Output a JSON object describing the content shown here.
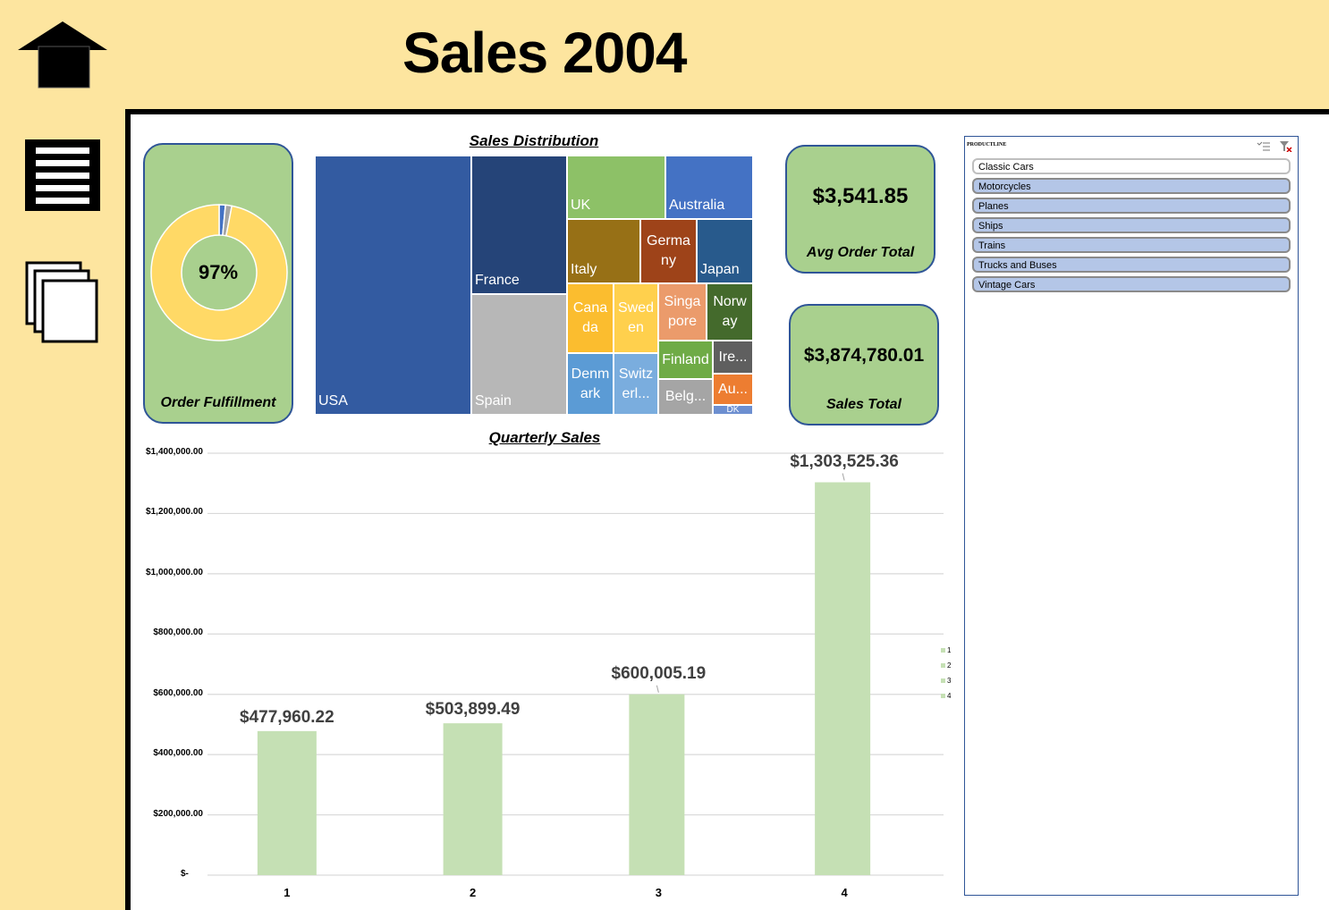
{
  "page": {
    "title": "Sales 2004"
  },
  "nav": {
    "home_icon": "home-arrow-icon",
    "list_icon": "list-icon",
    "pages_icon": "pages-icon"
  },
  "order_fulfillment": {
    "title": "Order Fulfillment",
    "value": "97%",
    "fraction": 0.97,
    "colors": {
      "fulfilled": "#ffd966",
      "other1": "#4472c4",
      "other2": "#a5a5a5"
    }
  },
  "sales_distribution": {
    "title": "Sales Distribution",
    "tiles": [
      {
        "label": "USA",
        "color": "#335ba1"
      },
      {
        "label": "France",
        "color": "#254478"
      },
      {
        "label": "Spain",
        "color": "#b7b7b7"
      },
      {
        "label": "UK",
        "color": "#8dc167"
      },
      {
        "label": "Australia",
        "color": "#4472c4"
      },
      {
        "label": "Italy",
        "color": "#977016"
      },
      {
        "label": "Germa ny",
        "color": "#9e4319"
      },
      {
        "label": "Japan",
        "color": "#285a8c"
      },
      {
        "label": "Cana da",
        "color": "#fbbd2f"
      },
      {
        "label": "Swed en",
        "color": "#ffd04d"
      },
      {
        "label": "Singa pore",
        "color": "#eb9b6b"
      },
      {
        "label": "Norw ay",
        "color": "#446a2c"
      },
      {
        "label": "Denm ark",
        "color": "#5b9bd5"
      },
      {
        "label": "Switz erl...",
        "color": "#7aadde"
      },
      {
        "label": "Finland",
        "color": "#6fab46"
      },
      {
        "label": "Ire...",
        "color": "#5f5f5f"
      },
      {
        "label": "Belg...",
        "color": "#a5a5a5"
      },
      {
        "label": "Au...",
        "color": "#ed7d31"
      },
      {
        "label": "DK",
        "color": "#6d8fd0"
      }
    ]
  },
  "avg_order": {
    "title": "Avg Order Total",
    "value": "$3,541.85"
  },
  "sales_total": {
    "title": "Sales Total",
    "value": "$3,874,780.01"
  },
  "slicer": {
    "header": "PRODUCTLINE",
    "multi_select_icon": "multi-select-icon",
    "clear_filter_icon": "clear-filter-icon",
    "items": [
      {
        "label": "Classic  Cars",
        "selected": true
      },
      {
        "label": "Motorcycles",
        "selected": false
      },
      {
        "label": "Planes",
        "selected": false
      },
      {
        "label": "Ships",
        "selected": false
      },
      {
        "label": "Trains",
        "selected": false
      },
      {
        "label": "Trucks and  Buses",
        "selected": false
      },
      {
        "label": "Vintage  Cars",
        "selected": false
      }
    ]
  },
  "chart_data": {
    "type": "bar",
    "title": "Quarterly Sales",
    "categories": [
      "1",
      "2",
      "3",
      "4"
    ],
    "values": [
      477960.22,
      503899.49,
      600005.19,
      1303525.36
    ],
    "data_labels": [
      "$477,960.22",
      "$503,899.49",
      "$600,005.19",
      "$1,303,525.36"
    ],
    "ylim": [
      0,
      1400000
    ],
    "yticks": [
      0,
      200000,
      400000,
      600000,
      800000,
      1000000,
      1200000,
      1400000
    ],
    "ytick_labels": [
      "$-",
      "$200,000.00",
      "$400,000.00",
      "$600,000.00",
      "$800,000.00",
      "$1,000,000.00",
      "$1,200,000.00",
      "$1,400,000.00"
    ],
    "legend": [
      "1",
      "2",
      "3",
      "4"
    ],
    "legend_position": "right",
    "grid": true,
    "bar_color": "#c5e0b4"
  }
}
